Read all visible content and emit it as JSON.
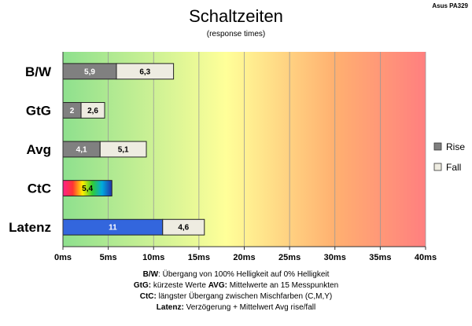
{
  "chart_data": {
    "type": "bar",
    "orientation": "horizontal",
    "stacked": true,
    "title": "Schaltzeiten",
    "subtitle": "(response times)",
    "brand": "Asus PA329",
    "categories": [
      "B/W",
      "GtG",
      "Avg",
      "CtC",
      "Latenz"
    ],
    "series": [
      {
        "name": "Rise",
        "values": [
          5.9,
          2,
          4.1,
          5.4,
          11
        ],
        "labels": [
          "5,9",
          "2",
          "4,1",
          "5,4",
          "11"
        ]
      },
      {
        "name": "Fall",
        "values": [
          6.3,
          2.6,
          5.1,
          null,
          4.6
        ],
        "labels": [
          "6,3",
          "2,6",
          "5,1",
          "",
          "4,6"
        ]
      }
    ],
    "xlim": [
      0,
      40
    ],
    "xticks": [
      0,
      5,
      10,
      15,
      20,
      25,
      30,
      35,
      40
    ],
    "xtick_labels": [
      "0ms",
      "5ms",
      "10ms",
      "15ms",
      "20ms",
      "25ms",
      "30ms",
      "35ms",
      "40ms"
    ],
    "grid": true,
    "legend_position": "right",
    "background": "gradient green-yellow-red",
    "colors": {
      "rise": "#808080",
      "fall": "#eeece1",
      "latenz_rise": "#3366dd",
      "grad_green": "#8ee08e",
      "grad_yellow": "#ffff99",
      "grad_orange": "#ffb070",
      "grad_red": "#ff7f7f"
    },
    "notes": [
      {
        "parts": [
          {
            "b": "B/W",
            "t": ":  Übergang von 100% Helligkeit auf 0% Helligkeit"
          }
        ]
      },
      {
        "parts": [
          {
            "b": "GtG:",
            "t": " kürzeste  Werte        "
          },
          {
            "b": "AVG:",
            "t": " Mittelwerte  an 15 Messpunkten"
          }
        ]
      },
      {
        "parts": [
          {
            "b": "CtC:",
            "t": " längster Übergang  zwischen Mischfarben  (C,M,Y)"
          }
        ]
      },
      {
        "parts": [
          {
            "b": "Latenz:",
            "t": " Verzögerung  + Mittelwert Avg rise/fall"
          }
        ]
      }
    ]
  }
}
